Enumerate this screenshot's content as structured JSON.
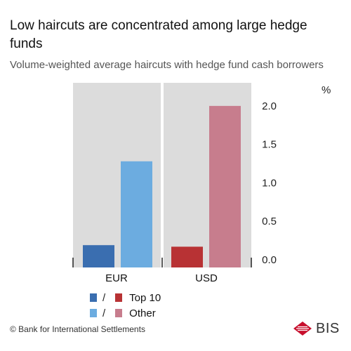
{
  "title": "Low haircuts are concentrated among large hedge funds",
  "subtitle": "Volume-weighted average haircuts with hedge fund cash borrowers",
  "footer": "© Bank for International Settlements",
  "logo_text": "BIS",
  "colors": {
    "panel_background": "#dcdcdc",
    "eur_top10": "#3a6eb0",
    "eur_other": "#6cace0",
    "usd_top10": "#b83234",
    "usd_other": "#c77d8d",
    "logo_red": "#c8102e"
  },
  "chart_data": {
    "type": "bar",
    "unit": "%",
    "ylim": [
      0,
      2.4
    ],
    "yticks": [
      "0.0",
      "0.5",
      "1.0",
      "1.5",
      "2.0"
    ],
    "tick_values": [
      0,
      0.5,
      1.0,
      1.5,
      2.0
    ],
    "grid": false,
    "legend_position": "bottom",
    "categories": [
      "EUR",
      "USD"
    ],
    "series": [
      {
        "key": "top10",
        "values": [
          0.29,
          0.27
        ]
      },
      {
        "key": "other",
        "values": [
          1.38,
          2.1
        ]
      }
    ]
  },
  "legend": [
    {
      "sep": "/",
      "label": "Top 10"
    },
    {
      "sep": "/",
      "label": "Other"
    }
  ]
}
